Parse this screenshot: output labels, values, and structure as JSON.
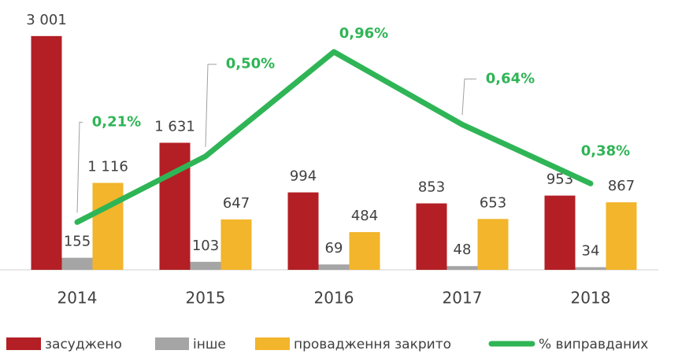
{
  "chart_data": {
    "type": "bar",
    "categories": [
      "2014",
      "2015",
      "2016",
      "2017",
      "2018"
    ],
    "ylim": [
      0,
      3060
    ],
    "y2lim": [
      0,
      1.05
    ],
    "series": [
      {
        "name": "засуджено",
        "color": "#b31f24",
        "values": [
          3001,
          1631,
          994,
          853,
          953
        ],
        "value_labels": [
          "3 001",
          "1 631",
          "994",
          "853",
          "953"
        ]
      },
      {
        "name": "інше",
        "color": "#a5a5a5",
        "values": [
          155,
          103,
          69,
          48,
          34
        ]
      },
      {
        "name": "провадження закрито",
        "color": "#f2b52b",
        "values": [
          1116,
          647,
          484,
          653,
          867
        ],
        "value_labels": [
          "1 116",
          "647",
          "484",
          "653",
          "867"
        ]
      },
      {
        "name": "% виправданих",
        "type": "line",
        "axis": "y2",
        "color": "#2fb556",
        "values": [
          0.21,
          0.5,
          0.96,
          0.64,
          0.38
        ],
        "value_labels": [
          "0,21%",
          "0,50%",
          "0,96%",
          "0,64%",
          "0,38%"
        ]
      }
    ]
  }
}
